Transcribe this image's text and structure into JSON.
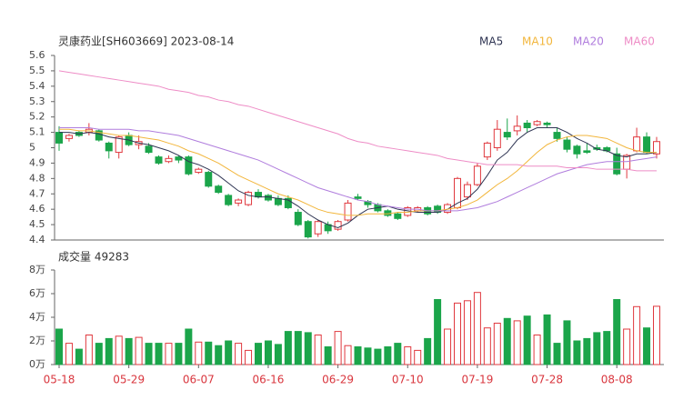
{
  "chart_data": [
    {
      "type": "candlestick",
      "title": "灵康药业[SH603669] 2023-08-14",
      "up_color": "#e0383e",
      "down_color": "#1ba54a",
      "open": [
        5.1,
        5.06,
        5.1,
        5.1,
        5.11,
        5.03,
        4.97,
        5.08,
        5.02,
        5.01,
        4.94,
        4.91,
        4.94,
        4.94,
        4.84,
        4.84,
        4.75,
        4.69,
        4.64,
        4.63,
        4.71,
        4.69,
        4.67,
        4.67,
        4.58,
        4.52,
        4.44,
        4.5,
        4.47,
        4.53,
        4.68,
        4.65,
        4.63,
        4.59,
        4.57,
        4.56,
        4.59,
        4.61,
        4.62,
        4.58,
        4.61,
        4.68,
        4.76,
        4.94,
        5.0,
        5.1,
        5.11,
        5.16,
        5.15,
        5.16,
        5.1,
        5.05,
        5.01,
        4.98,
        5.0,
        5.0,
        4.96,
        4.86,
        4.98,
        5.07,
        4.96
      ],
      "high": [
        5.14,
        5.09,
        5.11,
        5.16,
        5.12,
        5.04,
        5.08,
        5.1,
        5.08,
        5.03,
        4.95,
        4.95,
        4.95,
        4.95,
        4.87,
        4.85,
        4.76,
        4.7,
        4.67,
        4.72,
        4.73,
        4.7,
        4.69,
        4.69,
        4.6,
        4.53,
        4.53,
        4.52,
        4.53,
        4.66,
        4.7,
        4.66,
        4.64,
        4.6,
        4.58,
        4.62,
        4.62,
        4.62,
        4.63,
        4.64,
        4.81,
        4.78,
        4.9,
        5.04,
        5.18,
        5.19,
        5.21,
        5.18,
        5.18,
        5.17,
        5.13,
        5.07,
        5.02,
        5.03,
        5.02,
        5.01,
        5.0,
        4.96,
        5.13,
        5.1,
        5.07
      ],
      "low": [
        4.98,
        5.04,
        5.07,
        5.08,
        5.04,
        4.93,
        4.93,
        5.01,
        4.99,
        4.96,
        4.89,
        4.9,
        4.9,
        4.82,
        4.83,
        4.74,
        4.7,
        4.62,
        4.62,
        4.62,
        4.67,
        4.65,
        4.62,
        4.6,
        4.49,
        4.41,
        4.42,
        4.44,
        4.46,
        4.52,
        4.66,
        4.61,
        4.58,
        4.55,
        4.53,
        4.55,
        4.58,
        4.56,
        4.57,
        4.57,
        4.6,
        4.66,
        4.75,
        4.92,
        4.98,
        5.05,
        5.08,
        5.1,
        5.14,
        5.13,
        5.04,
        4.97,
        4.93,
        4.96,
        4.98,
        4.97,
        4.82,
        4.8,
        4.97,
        4.96,
        4.93
      ],
      "close": [
        5.03,
        5.08,
        5.08,
        5.12,
        5.05,
        4.98,
        5.07,
        5.02,
        5.04,
        4.97,
        4.9,
        4.93,
        4.92,
        4.83,
        4.86,
        4.75,
        4.71,
        4.63,
        4.66,
        4.71,
        4.68,
        4.66,
        4.63,
        4.61,
        4.5,
        4.42,
        4.52,
        4.46,
        4.52,
        4.64,
        4.67,
        4.63,
        4.59,
        4.56,
        4.54,
        4.61,
        4.61,
        4.57,
        4.58,
        4.63,
        4.8,
        4.76,
        4.88,
        5.03,
        5.12,
        5.07,
        5.14,
        5.13,
        5.17,
        5.15,
        5.06,
        4.99,
        4.96,
        4.97,
        4.99,
        4.98,
        4.83,
        4.95,
        5.07,
        4.97,
        5.04
      ],
      "series": [
        {
          "name": "MA5",
          "color": "#2f3553",
          "values": [
            5.1,
            5.1,
            5.09,
            5.1,
            5.09,
            5.07,
            5.06,
            5.05,
            5.03,
            5.02,
            5.0,
            4.98,
            4.95,
            4.91,
            4.89,
            4.86,
            4.82,
            4.77,
            4.72,
            4.69,
            4.68,
            4.68,
            4.67,
            4.66,
            4.62,
            4.57,
            4.53,
            4.5,
            4.48,
            4.51,
            4.56,
            4.6,
            4.61,
            4.62,
            4.6,
            4.59,
            4.58,
            4.58,
            4.58,
            4.6,
            4.64,
            4.67,
            4.73,
            4.82,
            4.92,
            4.97,
            5.05,
            5.1,
            5.13,
            5.13,
            5.13,
            5.1,
            5.06,
            5.03,
            4.99,
            4.98,
            4.95,
            4.94,
            4.96,
            4.96,
            4.97
          ]
        },
        {
          "name": "MA10",
          "color": "#f2b63c",
          "values": [
            5.12,
            5.12,
            5.11,
            5.11,
            5.1,
            5.09,
            5.08,
            5.08,
            5.07,
            5.06,
            5.05,
            5.03,
            5.01,
            4.98,
            4.96,
            4.93,
            4.9,
            4.86,
            4.82,
            4.79,
            4.76,
            4.73,
            4.7,
            4.68,
            4.66,
            4.63,
            4.6,
            4.58,
            4.57,
            4.56,
            4.56,
            4.57,
            4.57,
            4.57,
            4.58,
            4.58,
            4.59,
            4.59,
            4.59,
            4.6,
            4.61,
            4.63,
            4.66,
            4.71,
            4.76,
            4.8,
            4.85,
            4.91,
            4.97,
            5.02,
            5.05,
            5.07,
            5.08,
            5.08,
            5.07,
            5.06,
            5.03,
            5.0,
            4.98,
            4.97,
            4.97
          ]
        },
        {
          "name": "MA20",
          "color": "#b07ddd",
          "values": [
            5.13,
            5.13,
            5.13,
            5.13,
            5.12,
            5.12,
            5.12,
            5.12,
            5.11,
            5.11,
            5.1,
            5.09,
            5.08,
            5.06,
            5.04,
            5.02,
            5.0,
            4.98,
            4.96,
            4.94,
            4.92,
            4.89,
            4.86,
            4.83,
            4.8,
            4.77,
            4.74,
            4.72,
            4.7,
            4.68,
            4.66,
            4.65,
            4.63,
            4.62,
            4.61,
            4.6,
            4.6,
            4.59,
            4.59,
            4.59,
            4.59,
            4.6,
            4.61,
            4.63,
            4.65,
            4.68,
            4.71,
            4.74,
            4.77,
            4.8,
            4.83,
            4.85,
            4.87,
            4.89,
            4.9,
            4.91,
            4.91,
            4.91,
            4.92,
            4.93,
            4.94
          ]
        },
        {
          "name": "MA60",
          "color": "#ee8cc6",
          "values": [
            5.5,
            5.49,
            5.48,
            5.47,
            5.46,
            5.45,
            5.44,
            5.43,
            5.42,
            5.41,
            5.4,
            5.38,
            5.37,
            5.36,
            5.34,
            5.33,
            5.31,
            5.3,
            5.28,
            5.27,
            5.25,
            5.23,
            5.21,
            5.19,
            5.17,
            5.15,
            5.13,
            5.11,
            5.09,
            5.06,
            5.04,
            5.03,
            5.01,
            5.0,
            4.99,
            4.98,
            4.97,
            4.96,
            4.95,
            4.93,
            4.92,
            4.91,
            4.9,
            4.89,
            4.89,
            4.89,
            4.89,
            4.88,
            4.88,
            4.88,
            4.88,
            4.87,
            4.87,
            4.87,
            4.86,
            4.86,
            4.86,
            4.86,
            4.85,
            4.85,
            4.85
          ]
        }
      ],
      "ylim": [
        4.4,
        5.6
      ],
      "yticks": [
        5.6,
        5.5,
        5.4,
        5.3,
        5.2,
        5.1,
        5,
        4.9,
        4.8,
        4.7,
        4.6,
        4.5,
        4.4
      ]
    },
    {
      "type": "bar",
      "title": "成交量 49283",
      "categories": [
        "05-18",
        null,
        null,
        null,
        null,
        null,
        null,
        "05-29",
        null,
        null,
        null,
        null,
        null,
        null,
        "06-07",
        null,
        null,
        null,
        null,
        null,
        null,
        "06-16",
        null,
        null,
        null,
        null,
        null,
        null,
        "06-29",
        null,
        null,
        null,
        null,
        null,
        null,
        "07-10",
        null,
        null,
        null,
        null,
        null,
        null,
        "07-19",
        null,
        null,
        null,
        null,
        null,
        null,
        "07-28",
        null,
        null,
        null,
        null,
        null,
        null,
        "08-08",
        null,
        null,
        null,
        null
      ],
      "values": [
        3.0,
        1.8,
        1.3,
        2.5,
        1.8,
        2.2,
        2.4,
        2.2,
        2.3,
        1.8,
        1.8,
        1.8,
        1.8,
        3.0,
        1.9,
        1.9,
        1.6,
        2.0,
        1.8,
        1.2,
        1.8,
        2.0,
        1.7,
        2.8,
        2.8,
        2.7,
        2.5,
        1.5,
        2.8,
        1.6,
        1.5,
        1.4,
        1.3,
        1.5,
        1.8,
        1.5,
        1.2,
        2.2,
        5.5,
        3.0,
        5.2,
        5.4,
        6.1,
        3.1,
        3.5,
        3.9,
        3.7,
        4.1,
        2.5,
        4.2,
        1.8,
        3.7,
        2.0,
        2.2,
        2.7,
        2.8,
        5.5,
        3.0,
        4.9,
        3.1,
        4.93
      ],
      "ylim": [
        0,
        8
      ],
      "yticks": [
        {
          "value": 8,
          "label": "8万"
        },
        {
          "value": 6,
          "label": "6万"
        },
        {
          "value": 4,
          "label": "4万"
        },
        {
          "value": 2,
          "label": "2万"
        },
        {
          "value": 0,
          "label": "0万"
        }
      ]
    }
  ]
}
